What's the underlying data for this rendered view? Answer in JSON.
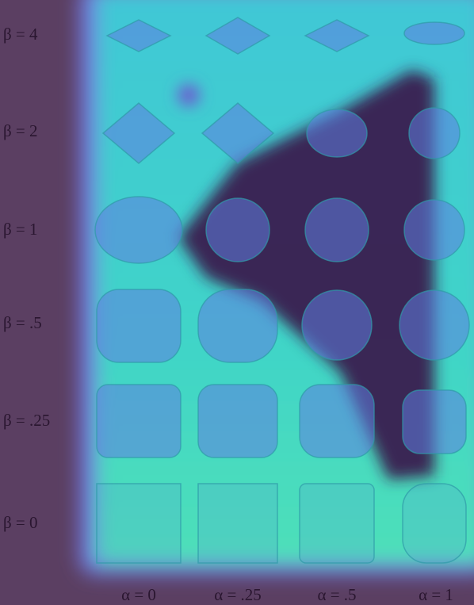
{
  "row_labels": [
    "β = 4",
    "β = 2",
    "β = 1",
    "β = .5",
    "β = .25",
    "β = 0"
  ],
  "column_labels": [
    "α = 0",
    "α = .25",
    "α = .5",
    "α = 1"
  ]
}
